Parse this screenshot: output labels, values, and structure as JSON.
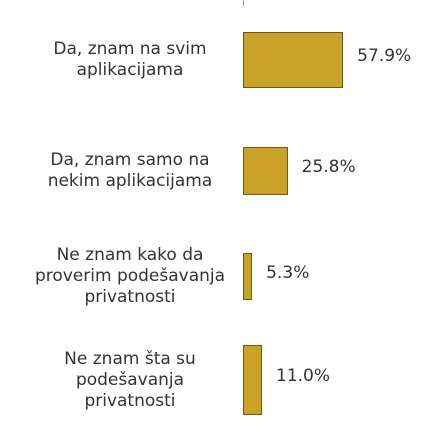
{
  "chart_data": {
    "type": "bar",
    "orientation": "horizontal",
    "categories": [
      "Da, znam na svim\naplikacijama",
      "Da, znam samo na\nnekim aplikacijama",
      "Ne znam kako da\nproverim podešavanja\nprivatnosti",
      "Ne znam šta su\npodešavanja\nprivatnosti"
    ],
    "values": [
      57.9,
      25.8,
      5.3,
      11.0
    ],
    "value_labels": [
      "57.9%",
      "25.8%",
      "5.3%",
      "11.0%"
    ],
    "color": "#c9a227"
  }
}
